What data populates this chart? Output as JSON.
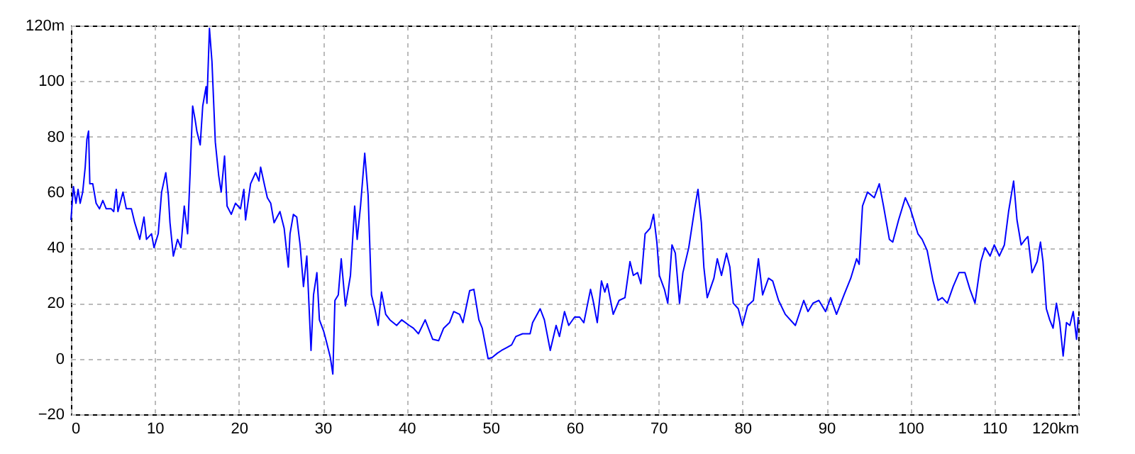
{
  "chart_data": {
    "type": "line",
    "color": "#0000ff",
    "line_style": "solid",
    "grid": true,
    "xlim": [
      0,
      120
    ],
    "ylim": [
      -20,
      120
    ],
    "xticks": [
      0,
      10,
      20,
      30,
      40,
      50,
      60,
      70,
      80,
      90,
      100,
      110,
      {
        "value": 120,
        "label": "120km"
      }
    ],
    "yticks": [
      -20,
      0,
      20,
      40,
      60,
      80,
      100,
      {
        "value": 120,
        "label": "120m"
      }
    ],
    "x": [
      0,
      0.3,
      0.6,
      0.85,
      1.1,
      1.4,
      1.7,
      1.9,
      2.1,
      2.25,
      2.6,
      3.0,
      3.4,
      3.8,
      4.2,
      4.8,
      5.1,
      5.4,
      5.6,
      6.2,
      6.6,
      7.2,
      7.6,
      8.2,
      8.7,
      9.0,
      9.6,
      9.9,
      10.4,
      10.8,
      11.3,
      11.6,
      11.8,
      12.2,
      12.7,
      13.1,
      13.5,
      13.9,
      14.2,
      14.5,
      14.8,
      15.0,
      15.4,
      15.7,
      16.1,
      16.2,
      16.5,
      16.8,
      17.2,
      17.6,
      17.9,
      18.3,
      18.6,
      19.1,
      19.6,
      20.2,
      20.6,
      20.8,
      21.4,
      22.0,
      22.4,
      22.6,
      23.1,
      23.4,
      23.8,
      24.2,
      24.9,
      25.4,
      25.9,
      26.1,
      26.5,
      26.9,
      27.3,
      27.7,
      28.1,
      28.6,
      28.9,
      29.3,
      29.6,
      30.1,
      30.45,
      30.9,
      31.2,
      31.45,
      31.85,
      32.2,
      32.7,
      33.3,
      33.8,
      34.1,
      34.5,
      35.0,
      35.4,
      35.8,
      36.2,
      36.6,
      37.0,
      37.5,
      38.0,
      38.8,
      39.4,
      40.3,
      40.8,
      41.4,
      42.2,
      43.1,
      43.8,
      44.4,
      45.1,
      45.6,
      46.3,
      46.7,
      47.5,
      48.0,
      48.6,
      49.0,
      49.7,
      50.2,
      50.8,
      51.3,
      51.9,
      52.5,
      53.0,
      53.8,
      54.7,
      55.0,
      55.9,
      56.4,
      57.1,
      57.8,
      58.2,
      58.8,
      59.3,
      60.0,
      60.6,
      61.1,
      61.9,
      62.2,
      62.7,
      63.2,
      63.6,
      63.9,
      64.6,
      65.3,
      66.0,
      66.6,
      67.0,
      67.5,
      67.9,
      68.4,
      69.0,
      69.4,
      69.8,
      70.1,
      70.7,
      71.1,
      71.6,
      72.0,
      72.5,
      72.9,
      73.6,
      74.3,
      74.7,
      75.1,
      75.4,
      75.8,
      76.6,
      77.0,
      77.5,
      78.1,
      78.5,
      78.9,
      79.5,
      80.0,
      80.6,
      81.3,
      81.9,
      82.4,
      83.1,
      83.6,
      84.3,
      85.1,
      86.3,
      87.3,
      87.8,
      88.4,
      89.1,
      89.9,
      90.5,
      91.2,
      92.1,
      92.9,
      93.6,
      93.9,
      94.3,
      94.9,
      95.7,
      96.3,
      96.8,
      97.5,
      97.9,
      98.6,
      99.4,
      100.0,
      100.9,
      101.4,
      102.0,
      102.7,
      103.3,
      103.8,
      104.4,
      105.1,
      105.8,
      106.5,
      107.1,
      107.7,
      108.4,
      108.9,
      109.5,
      110.0,
      110.6,
      111.2,
      111.7,
      112.3,
      112.7,
      113.2,
      113.7,
      114.0,
      114.5,
      115.1,
      115.5,
      115.8,
      116.2,
      116.6,
      117.0,
      117.4,
      117.8,
      118.2,
      118.6,
      119.0,
      119.4,
      119.8,
      120
    ],
    "values": [
      50,
      62,
      56,
      61,
      56,
      60,
      69,
      79,
      82,
      63,
      63,
      56,
      54,
      57,
      54,
      54,
      53,
      61,
      53,
      60,
      54,
      54,
      49,
      43,
      51,
      43,
      45,
      40,
      45,
      60,
      67,
      59,
      49,
      37,
      43,
      40,
      55,
      45,
      67,
      91,
      86,
      82,
      77,
      91,
      98,
      92,
      119,
      107,
      78,
      66,
      60,
      73,
      55,
      52,
      56,
      54,
      61,
      50,
      63,
      67,
      64,
      69,
      62,
      58,
      56,
      49,
      53,
      47,
      33,
      45,
      52,
      51,
      41,
      26,
      37,
      3,
      23,
      31,
      14,
      10,
      6,
      0.5,
      -5.5,
      21,
      23,
      36,
      19,
      30,
      55,
      43,
      55,
      74,
      59,
      23,
      18,
      12,
      24,
      16,
      14,
      12,
      14,
      12,
      11,
      9,
      14,
      7,
      6.5,
      11,
      13,
      17,
      16,
      13,
      24.5,
      25,
      14,
      11,
      0,
      0.5,
      2,
      3,
      4,
      5,
      8,
      9,
      9,
      13,
      18,
      14,
      3,
      12,
      8,
      17,
      12,
      15,
      15,
      13,
      25,
      21,
      13,
      28,
      24,
      27,
      16,
      21,
      22,
      35,
      30,
      31,
      27,
      45,
      47,
      52,
      42,
      30,
      25,
      20,
      41,
      38,
      20,
      31,
      40,
      54,
      61,
      49,
      33,
      22,
      29,
      36,
      30,
      38,
      33,
      20,
      18,
      12,
      19,
      21,
      36,
      23,
      29,
      28,
      21,
      16,
      12,
      21,
      17,
      20,
      21,
      17,
      22,
      16,
      23,
      29,
      36,
      34,
      55,
      60,
      58,
      63,
      55,
      43,
      42,
      50,
      58,
      54,
      45,
      43,
      39,
      28,
      21,
      22,
      20,
      26,
      31,
      31,
      25,
      20,
      35,
      40,
      37,
      41,
      37,
      41,
      53,
      64,
      50,
      41,
      43,
      44,
      31,
      35,
      42,
      35,
      18,
      14,
      11,
      20,
      13,
      1,
      13,
      12,
      17,
      7,
      15
    ]
  }
}
